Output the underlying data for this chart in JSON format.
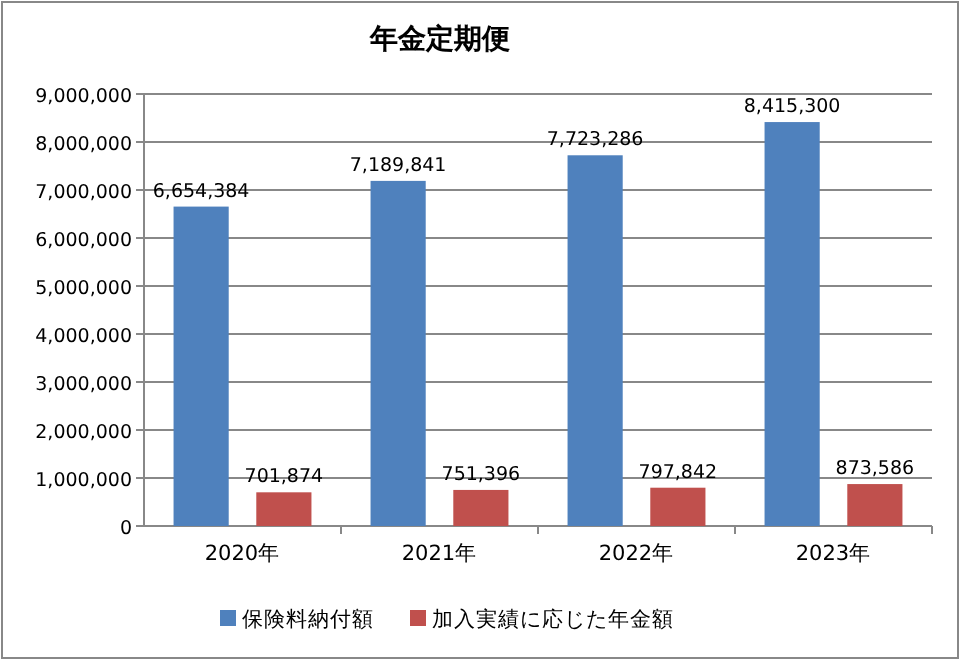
{
  "chart_data": {
    "type": "bar",
    "title": "年金定期便",
    "categories": [
      "2020年",
      "2021年",
      "2022年",
      "2023年"
    ],
    "series": [
      {
        "name": "保険料納付額",
        "color": "#4f81bd",
        "values": [
          6654384,
          7189841,
          7723286,
          8415300
        ],
        "value_labels": [
          "6,654,384",
          "7,189,841",
          "7,723,286",
          "8,415,300"
        ]
      },
      {
        "name": "加入実績に応じた年金額",
        "color": "#c0504d",
        "values": [
          701874,
          751396,
          797842,
          873586
        ],
        "value_labels": [
          "701,874",
          "751,396",
          "797,842",
          "873,586"
        ]
      }
    ],
    "ylim": [
      0,
      9000000
    ],
    "yticks": [
      0,
      {
        "value": 1000000,
        "label": "1,000,000"
      },
      {
        "value": 2000000,
        "label": "2,000,000"
      },
      {
        "value": 3000000,
        "label": "3,000,000"
      },
      {
        "value": 4000000,
        "label": "4,000,000"
      },
      {
        "value": 5000000,
        "label": "5,000,000"
      },
      {
        "value": 6000000,
        "label": "6,000,000"
      },
      {
        "value": 7000000,
        "label": "7,000,000"
      },
      {
        "value": 8000000,
        "label": "8,000,000"
      },
      {
        "value": 9000000,
        "label": "9,000,000"
      }
    ],
    "grid": "y",
    "legend": "bottom"
  }
}
